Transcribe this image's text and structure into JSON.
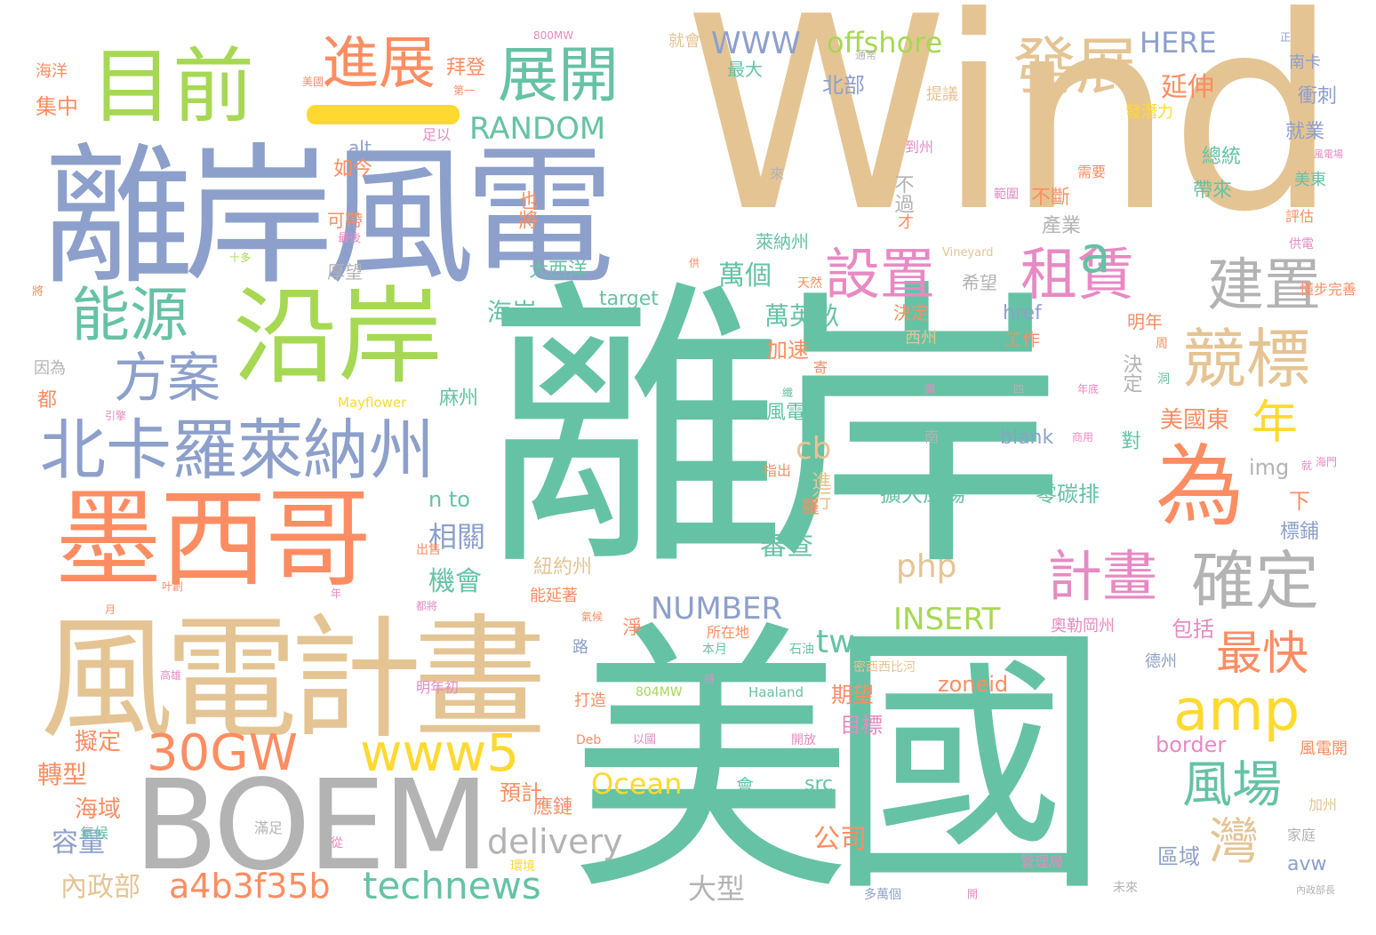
{
  "palette": {
    "teal": "#66c2a5",
    "orange": "#fc8d62",
    "blue": "#8da0cb",
    "pink": "#e78ac3",
    "green": "#a6d854",
    "yellow": "#ffd92f",
    "tan": "#e5c494",
    "gray": "#b3b3b3"
  },
  "words": [
    "Wind",
    "離岸",
    "美國",
    "離岸風電",
    "風電計畫",
    "BOEM",
    "墨西哥",
    "沿岸",
    "北卡羅萊納州",
    "目前",
    "展開",
    "能源",
    "進展",
    "發展",
    "為",
    "競標",
    "確定",
    "租賃",
    "設置",
    "建置",
    "方案",
    "計畫",
    "amp",
    "風場",
    "30GW",
    "www5",
    "technews",
    "a4b3f35b",
    "delivery",
    "最快",
    "Ocean",
    "灣",
    "年",
    "a",
    "cb",
    "php",
    "INSERT",
    "NUMBER",
    "RANDOM",
    "tw",
    "WWW",
    "offshore",
    "HERE",
    "延伸",
    "拜登",
    "北部",
    "內政部",
    "大型",
    "公司",
    "容量",
    "相關",
    "轉型",
    "擬定",
    "海域",
    "審查",
    "機會",
    "萬個",
    "海岸",
    "萬英畝",
    "美國東",
    "擴大風場",
    "零碳排",
    "n to",
    "加速",
    "風電目",
    "期望",
    "目標",
    "zoneid",
    "border",
    "href",
    "blank",
    "img",
    "target",
    "Vineyard",
    "Mayflower",
    "Haaland",
    "Deb",
    "alt",
    "ck",
    "avw",
    "src",
    "800MW",
    "804MW",
    "集中",
    "海洋",
    "如今",
    "可帶",
    "厚望",
    "大西洋",
    "麻州",
    "都",
    "因為",
    "包括",
    "區域",
    "下",
    "標鋪",
    "衝刺",
    "就業",
    "總統",
    "帶來",
    "南卡",
    "供電",
    "不斷",
    "產業",
    "工作",
    "明年",
    "西州",
    "希望",
    "萊納州",
    "決定",
    "對",
    "淨",
    "路",
    "奧勒岡州",
    "紐約州",
    "應鏈",
    "預計",
    "會",
    "能延著",
    "明年初",
    "評估",
    "風電開",
    "加州",
    "家庭",
    "多萬個",
    "未來",
    "最大",
    "就會",
    "足以",
    "也將",
    "來",
    "需要",
    "範圍",
    "到州",
    "不過",
    "才",
    "提議",
    "發潛力",
    "進行",
    "羅",
    "寄",
    "南",
    "指出",
    "出售",
    "本月",
    "所在地",
    "石油",
    "德州",
    "密西西比河",
    "管理局",
    "滿足",
    "氣候",
    "從",
    "環境",
    "引擎",
    "打造",
    "將",
    "最後",
    "十多",
    "以國",
    "通常",
    "美國",
    "第一",
    "正",
    "風電場",
    "懂步完善",
    "美東",
    "天然",
    "供",
    "外",
    "周",
    "洞",
    "纖",
    "團",
    "四",
    "商用",
    "年底",
    "海門",
    "內政部長",
    "都將",
    "氣候",
    "高雄",
    "叶創",
    "月",
    "年",
    "將",
    "開",
    "就",
    "開放",
    "旅",
    "呼"
  ]
}
